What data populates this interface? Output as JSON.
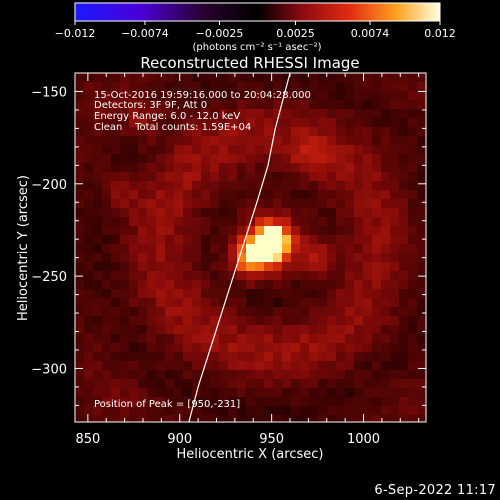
{
  "colorbar": {
    "tick_labels": [
      "−0.012",
      "−0.0074",
      "−0.0025",
      "0.0025",
      "0.0074",
      "0.012"
    ],
    "tick_values": [
      -0.012,
      -0.0074,
      -0.0025,
      0.0025,
      0.0074,
      0.012
    ],
    "range": [
      -0.012,
      0.012
    ],
    "unit_label": "(photons cm⁻² s⁻¹ asec⁻²)"
  },
  "chart_data": {
    "type": "heatmap",
    "title": "Reconstructed RHESSI Image",
    "xlabel": "Heliocentric X (arcsec)",
    "ylabel": "Heliocentric Y (arcsec)",
    "xlim": [
      843,
      1034
    ],
    "ylim": [
      -329,
      -140
    ],
    "x_ticks": [
      850,
      900,
      950,
      1000
    ],
    "y_ticks": [
      -150,
      -200,
      -250,
      -300
    ],
    "x_tick_labels": [
      "850",
      "900",
      "950",
      "1000"
    ],
    "y_tick_labels": [
      "−150",
      "−200",
      "−250",
      "−300"
    ],
    "peak": {
      "x": 950,
      "y": -231
    },
    "sources": [
      {
        "x": 950,
        "y": -232,
        "amplitude": 1.0
      },
      {
        "x": 938,
        "y": -240,
        "amplitude": 0.6
      },
      {
        "x": 975,
        "y": -240,
        "amplitude": 0.25
      },
      {
        "x": 971,
        "y": -184,
        "amplitude": 0.2
      },
      {
        "x": 880,
        "y": -165,
        "amplitude": 0.18
      },
      {
        "x": 868,
        "y": -205,
        "amplitude": 0.18
      }
    ],
    "limb_curve": {
      "x": [
        905,
        910,
        918,
        926,
        934,
        942,
        948,
        952,
        956,
        960
      ],
      "y": [
        -329,
        -310,
        -285,
        -260,
        -235,
        -210,
        -190,
        -170,
        -155,
        -140
      ]
    },
    "annotations": [
      "15-Oct-2016 19:59:16.000 to 20:04:28.000",
      "Detectors: 3F 9F, Att 0",
      "Energy Range: 6.0 - 12.0 keV",
      "Clean    Total counts: 1.59E+04",
      "Position of Peak = [950,-231]"
    ]
  },
  "footer": {
    "date": "6-Sep-2022 11:17"
  }
}
